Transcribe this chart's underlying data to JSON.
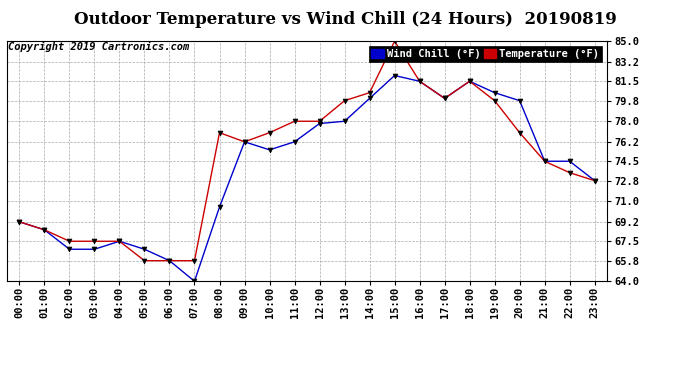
{
  "title": "Outdoor Temperature vs Wind Chill (24 Hours)  20190819",
  "copyright": "Copyright 2019 Cartronics.com",
  "legend_wind_chill": "Wind Chill (°F)",
  "legend_temperature": "Temperature (°F)",
  "x_labels": [
    "00:00",
    "01:00",
    "02:00",
    "03:00",
    "04:00",
    "05:00",
    "06:00",
    "07:00",
    "08:00",
    "09:00",
    "10:00",
    "11:00",
    "12:00",
    "13:00",
    "14:00",
    "15:00",
    "16:00",
    "17:00",
    "18:00",
    "19:00",
    "20:00",
    "21:00",
    "22:00",
    "23:00"
  ],
  "temperature": [
    69.2,
    68.5,
    67.5,
    67.5,
    67.5,
    65.8,
    65.8,
    65.8,
    77.0,
    76.2,
    77.0,
    78.0,
    78.0,
    79.8,
    80.5,
    85.0,
    81.5,
    80.0,
    81.5,
    79.8,
    77.0,
    74.5,
    73.5,
    72.8
  ],
  "wind_chill": [
    69.2,
    68.5,
    66.8,
    66.8,
    67.5,
    66.8,
    65.8,
    64.0,
    70.5,
    76.2,
    75.5,
    76.2,
    77.8,
    78.0,
    80.0,
    82.0,
    81.5,
    80.0,
    81.5,
    80.5,
    79.8,
    74.5,
    74.5,
    72.8
  ],
  "ylim": [
    64.0,
    85.0
  ],
  "yticks": [
    64.0,
    65.8,
    67.5,
    69.2,
    71.0,
    72.8,
    74.5,
    76.2,
    78.0,
    79.8,
    81.5,
    83.2,
    85.0
  ],
  "bg_color": "#ffffff",
  "grid_color": "#aaaaaa",
  "temp_color": "#cc0000",
  "wind_color": "#0000cc",
  "title_fontsize": 12,
  "copyright_fontsize": 7.5,
  "tick_fontsize": 7.5
}
